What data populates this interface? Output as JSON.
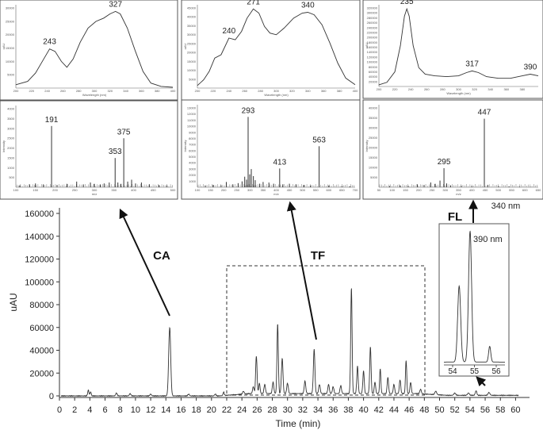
{
  "chart_data": [
    {
      "type": "line",
      "name": "main-chromatogram",
      "xlabel": "Time (min)",
      "ylabel": "uAU",
      "xlim": [
        0,
        61
      ],
      "ylim": [
        -5000,
        170000
      ],
      "x_ticks": [
        "0",
        "2",
        "4",
        "6",
        "8",
        "10",
        "12",
        "14",
        "16",
        "18",
        "20",
        "22",
        "24",
        "26",
        "28",
        "30",
        "32",
        "34",
        "36",
        "38",
        "40",
        "42",
        "44",
        "46",
        "48",
        "50",
        "52",
        "54",
        "56",
        "58",
        "60"
      ],
      "y_ticks": [
        "0",
        "20000",
        "40000",
        "60000",
        "80000",
        "100000",
        "120000",
        "140000",
        "160000"
      ],
      "baseline": 0,
      "peaks": [
        {
          "t": 3.8,
          "h": 5000,
          "w": 0.08
        },
        {
          "t": 4.1,
          "h": 3500,
          "w": 0.08
        },
        {
          "t": 7.5,
          "h": 2500,
          "w": 0.1
        },
        {
          "t": 9.3,
          "h": 2000,
          "w": 0.1
        },
        {
          "t": 12.0,
          "h": 1500,
          "w": 0.1
        },
        {
          "t": 14.5,
          "h": 60000,
          "w": 0.13
        },
        {
          "t": 17.0,
          "h": 1500,
          "w": 0.1
        },
        {
          "t": 20.5,
          "h": 1500,
          "w": 0.1
        },
        {
          "t": 21.6,
          "h": 3000,
          "w": 0.08
        },
        {
          "t": 24.2,
          "h": 2500,
          "w": 0.1
        },
        {
          "t": 25.5,
          "h": 6000,
          "w": 0.1
        },
        {
          "t": 25.9,
          "h": 33000,
          "w": 0.09
        },
        {
          "t": 26.3,
          "h": 9000,
          "w": 0.09
        },
        {
          "t": 27.0,
          "h": 8000,
          "w": 0.1
        },
        {
          "t": 28.1,
          "h": 10000,
          "w": 0.1
        },
        {
          "t": 28.7,
          "h": 61000,
          "w": 0.09
        },
        {
          "t": 29.3,
          "h": 31000,
          "w": 0.1
        },
        {
          "t": 30.0,
          "h": 9000,
          "w": 0.1
        },
        {
          "t": 32.3,
          "h": 11000,
          "w": 0.1
        },
        {
          "t": 33.5,
          "h": 39000,
          "w": 0.1
        },
        {
          "t": 34.2,
          "h": 8000,
          "w": 0.1
        },
        {
          "t": 35.4,
          "h": 8000,
          "w": 0.1
        },
        {
          "t": 36.0,
          "h": 6000,
          "w": 0.1
        },
        {
          "t": 37.0,
          "h": 7000,
          "w": 0.1
        },
        {
          "t": 38.4,
          "h": 93000,
          "w": 0.09
        },
        {
          "t": 39.2,
          "h": 24000,
          "w": 0.09
        },
        {
          "t": 40.0,
          "h": 20000,
          "w": 0.09
        },
        {
          "t": 40.9,
          "h": 41000,
          "w": 0.09
        },
        {
          "t": 41.5,
          "h": 10000,
          "w": 0.09
        },
        {
          "t": 42.2,
          "h": 22000,
          "w": 0.08
        },
        {
          "t": 43.2,
          "h": 14000,
          "w": 0.09
        },
        {
          "t": 44.0,
          "h": 8000,
          "w": 0.09
        },
        {
          "t": 44.8,
          "h": 12000,
          "w": 0.09
        },
        {
          "t": 45.6,
          "h": 29000,
          "w": 0.08
        },
        {
          "t": 46.2,
          "h": 10000,
          "w": 0.09
        },
        {
          "t": 47.5,
          "h": 4000,
          "w": 0.1
        },
        {
          "t": 49.5,
          "h": 3000,
          "w": 0.12
        },
        {
          "t": 52.0,
          "h": 2000,
          "w": 0.12
        },
        {
          "t": 53.8,
          "h": 2000,
          "w": 0.12
        },
        {
          "t": 54.8,
          "h": 4000,
          "w": 0.1
        },
        {
          "t": 56.5,
          "h": 2500,
          "w": 0.12
        }
      ],
      "annotations": [
        {
          "label": "CA",
          "peak_time": 14.5
        },
        {
          "label": "TF",
          "region": [
            22,
            47
          ]
        },
        {
          "label": "FL",
          "peak_time": 54.8
        }
      ]
    },
    {
      "type": "line",
      "name": "inset-390nm",
      "label": "390 nm",
      "xlim": [
        53.6,
        56.4
      ],
      "x_ticks": [
        "54",
        "55",
        "56"
      ],
      "peaks": [
        {
          "t": 54.3,
          "h": 0.58,
          "w": 0.07
        },
        {
          "t": 54.8,
          "h": 1.0,
          "w": 0.07
        },
        {
          "t": 55.7,
          "h": 0.12,
          "w": 0.05
        }
      ]
    },
    {
      "type": "line",
      "name": "uv-spectrum-ca",
      "xlim": [
        200,
        400
      ],
      "peak_labels": [
        {
          "x": 243,
          "text": "243"
        },
        {
          "x": 327,
          "text": "327"
        }
      ],
      "x_ticks": [
        "200",
        "220",
        "240",
        "260",
        "280",
        "300",
        "320",
        "340",
        "360",
        "380",
        "400"
      ],
      "y_ticks": [
        "5000",
        "10000",
        "15000",
        "20000",
        "25000",
        "30000"
      ],
      "xlabel": "Wavelength (nm)",
      "ylabel": "uAU",
      "points": [
        [
          200,
          0.04
        ],
        [
          215,
          0.08
        ],
        [
          225,
          0.18
        ],
        [
          235,
          0.34
        ],
        [
          243,
          0.47
        ],
        [
          250,
          0.44
        ],
        [
          258,
          0.32
        ],
        [
          265,
          0.25
        ],
        [
          273,
          0.35
        ],
        [
          282,
          0.55
        ],
        [
          292,
          0.72
        ],
        [
          302,
          0.8
        ],
        [
          312,
          0.84
        ],
        [
          320,
          0.89
        ],
        [
          327,
          0.92
        ],
        [
          333,
          0.89
        ],
        [
          342,
          0.72
        ],
        [
          352,
          0.45
        ],
        [
          362,
          0.2
        ],
        [
          372,
          0.06
        ],
        [
          385,
          0.02
        ],
        [
          400,
          0.01
        ]
      ]
    },
    {
      "type": "line",
      "name": "uv-spectrum-tf",
      "xlim": [
        200,
        400
      ],
      "peak_labels": [
        {
          "x": 240,
          "text": "240"
        },
        {
          "x": 271,
          "text": "271"
        },
        {
          "x": 340,
          "text": "340"
        }
      ],
      "x_ticks": [
        "200",
        "220",
        "240",
        "260",
        "280",
        "300",
        "320",
        "340",
        "360",
        "380",
        "400"
      ],
      "y_ticks": [
        "5000",
        "10000",
        "15000",
        "20000",
        "25000",
        "30000",
        "35000",
        "40000",
        "45000"
      ],
      "xlabel": "Wavelength (nm)",
      "ylabel": "uAU",
      "points": [
        [
          200,
          0.03
        ],
        [
          208,
          0.1
        ],
        [
          215,
          0.2
        ],
        [
          222,
          0.36
        ],
        [
          230,
          0.4
        ],
        [
          240,
          0.6
        ],
        [
          248,
          0.58
        ],
        [
          256,
          0.68
        ],
        [
          263,
          0.84
        ],
        [
          271,
          0.95
        ],
        [
          278,
          0.9
        ],
        [
          285,
          0.74
        ],
        [
          292,
          0.66
        ],
        [
          300,
          0.64
        ],
        [
          310,
          0.72
        ],
        [
          322,
          0.84
        ],
        [
          333,
          0.9
        ],
        [
          340,
          0.91
        ],
        [
          348,
          0.88
        ],
        [
          358,
          0.76
        ],
        [
          368,
          0.54
        ],
        [
          378,
          0.3
        ],
        [
          388,
          0.12
        ],
        [
          400,
          0.04
        ]
      ]
    },
    {
      "type": "line",
      "name": "uv-spectrum-fl",
      "xlim": [
        200,
        400
      ],
      "peak_labels": [
        {
          "x": 235,
          "text": "235"
        },
        {
          "x": 317,
          "text": "317"
        },
        {
          "x": 390,
          "text": "390"
        }
      ],
      "x_ticks": [
        "200",
        "220",
        "240",
        "260",
        "280",
        "300",
        "320",
        "340",
        "360",
        "380"
      ],
      "y_ticks": [
        "20000",
        "40000",
        "60000",
        "80000",
        "100000",
        "120000",
        "140000",
        "160000",
        "180000",
        "200000",
        "220000",
        "240000",
        "260000",
        "280000",
        "300000",
        "320000"
      ],
      "xlabel": "Wavelength (nm)",
      "ylabel": "uAU",
      "points": [
        [
          200,
          0.02
        ],
        [
          210,
          0.05
        ],
        [
          220,
          0.18
        ],
        [
          227,
          0.5
        ],
        [
          232,
          0.86
        ],
        [
          235,
          0.95
        ],
        [
          238,
          0.86
        ],
        [
          243,
          0.5
        ],
        [
          250,
          0.23
        ],
        [
          258,
          0.15
        ],
        [
          270,
          0.13
        ],
        [
          285,
          0.12
        ],
        [
          300,
          0.13
        ],
        [
          310,
          0.17
        ],
        [
          317,
          0.19
        ],
        [
          325,
          0.17
        ],
        [
          335,
          0.12
        ],
        [
          350,
          0.1
        ],
        [
          365,
          0.1
        ],
        [
          380,
          0.13
        ],
        [
          390,
          0.15
        ],
        [
          400,
          0.13
        ]
      ]
    },
    {
      "type": "bar",
      "name": "mass-spectrum-ca",
      "xlim": [
        100,
        500
      ],
      "peak_labels": [
        {
          "x": 191,
          "text": "191"
        },
        {
          "x": 353,
          "text": "353"
        },
        {
          "x": 375,
          "text": "375"
        }
      ],
      "x_ticks": [
        "100",
        "150",
        "200",
        "250",
        "300",
        "350",
        "400",
        "450",
        "500"
      ],
      "y_ticks": [
        "500",
        "1000",
        "1500",
        "2000",
        "2500",
        "3000",
        "3500",
        "4000"
      ],
      "xlabel": "m/z",
      "ylabel": "Intensity",
      "ymax": 4000,
      "bars": [
        [
          110,
          100
        ],
        [
          135,
          150
        ],
        [
          150,
          200
        ],
        [
          170,
          150
        ],
        [
          191,
          3250
        ],
        [
          205,
          120
        ],
        [
          230,
          180
        ],
        [
          255,
          300
        ],
        [
          272,
          150
        ],
        [
          290,
          250
        ],
        [
          300,
          180
        ],
        [
          315,
          150
        ],
        [
          325,
          200
        ],
        [
          338,
          250
        ],
        [
          353,
          1550
        ],
        [
          360,
          250
        ],
        [
          368,
          180
        ],
        [
          375,
          2600
        ],
        [
          385,
          300
        ],
        [
          395,
          400
        ],
        [
          405,
          200
        ],
        [
          420,
          250
        ],
        [
          440,
          150
        ],
        [
          465,
          120
        ],
        [
          485,
          100
        ]
      ]
    },
    {
      "type": "bar",
      "name": "mass-spectrum-tf",
      "xlim": [
        100,
        700
      ],
      "peak_labels": [
        {
          "x": 293,
          "text": "293"
        },
        {
          "x": 413,
          "text": "413"
        },
        {
          "x": 563,
          "text": "563"
        }
      ],
      "x_ticks": [
        "100",
        "150",
        "200",
        "250",
        "300",
        "350",
        "400",
        "450",
        "500",
        "550",
        "600",
        "650",
        "700"
      ],
      "y_ticks": [
        "1000",
        "2000",
        "3000",
        "4000",
        "5000",
        "6000",
        "7000",
        "8000",
        "9000",
        "10000",
        "11000",
        "12000",
        "13000"
      ],
      "xlabel": "m/z",
      "ylabel": "Intensity",
      "ymax": 13000,
      "bars": [
        [
          130,
          300
        ],
        [
          160,
          400
        ],
        [
          190,
          350
        ],
        [
          210,
          900
        ],
        [
          235,
          500
        ],
        [
          255,
          700
        ],
        [
          270,
          1000
        ],
        [
          280,
          1800
        ],
        [
          287,
          1300
        ],
        [
          293,
          12000
        ],
        [
          299,
          2200
        ],
        [
          305,
          3100
        ],
        [
          313,
          1900
        ],
        [
          320,
          1200
        ],
        [
          337,
          600
        ],
        [
          350,
          900
        ],
        [
          372,
          800
        ],
        [
          390,
          600
        ],
        [
          413,
          3200
        ],
        [
          425,
          500
        ],
        [
          450,
          600
        ],
        [
          475,
          500
        ],
        [
          505,
          400
        ],
        [
          530,
          300
        ],
        [
          563,
          7000
        ],
        [
          600,
          300
        ],
        [
          650,
          200
        ],
        [
          680,
          150
        ]
      ]
    },
    {
      "type": "bar",
      "name": "mass-spectrum-fl",
      "xlim": [
        50,
        650
      ],
      "peak_labels": [
        {
          "x": 295,
          "text": "295"
        },
        {
          "x": 447,
          "text": "447"
        }
      ],
      "x_ticks": [
        "50",
        "100",
        "150",
        "200",
        "250",
        "300",
        "350",
        "400",
        "450",
        "500",
        "550",
        "600",
        "650"
      ],
      "y_ticks": [
        "5000",
        "10000",
        "15000",
        "20000",
        "25000",
        "30000",
        "35000",
        "40000"
      ],
      "xlabel": "m/z",
      "ylabel": "Intensity",
      "ymax": 40000,
      "bars": [
        [
          90,
          600
        ],
        [
          130,
          1000
        ],
        [
          160,
          800
        ],
        [
          195,
          1500
        ],
        [
          220,
          1200
        ],
        [
          245,
          2500
        ],
        [
          262,
          1800
        ],
        [
          280,
          3500
        ],
        [
          295,
          10000
        ],
        [
          305,
          2000
        ],
        [
          320,
          1000
        ],
        [
          360,
          800
        ],
        [
          400,
          600
        ],
        [
          447,
          36000
        ],
        [
          460,
          1200
        ],
        [
          500,
          600
        ],
        [
          540,
          500
        ],
        [
          580,
          300
        ],
        [
          620,
          200
        ]
      ]
    }
  ],
  "labels": {
    "ca": "CA",
    "tf": "TF",
    "fl": "FL",
    "nm340": "340 nm",
    "nm390": "390 nm"
  }
}
